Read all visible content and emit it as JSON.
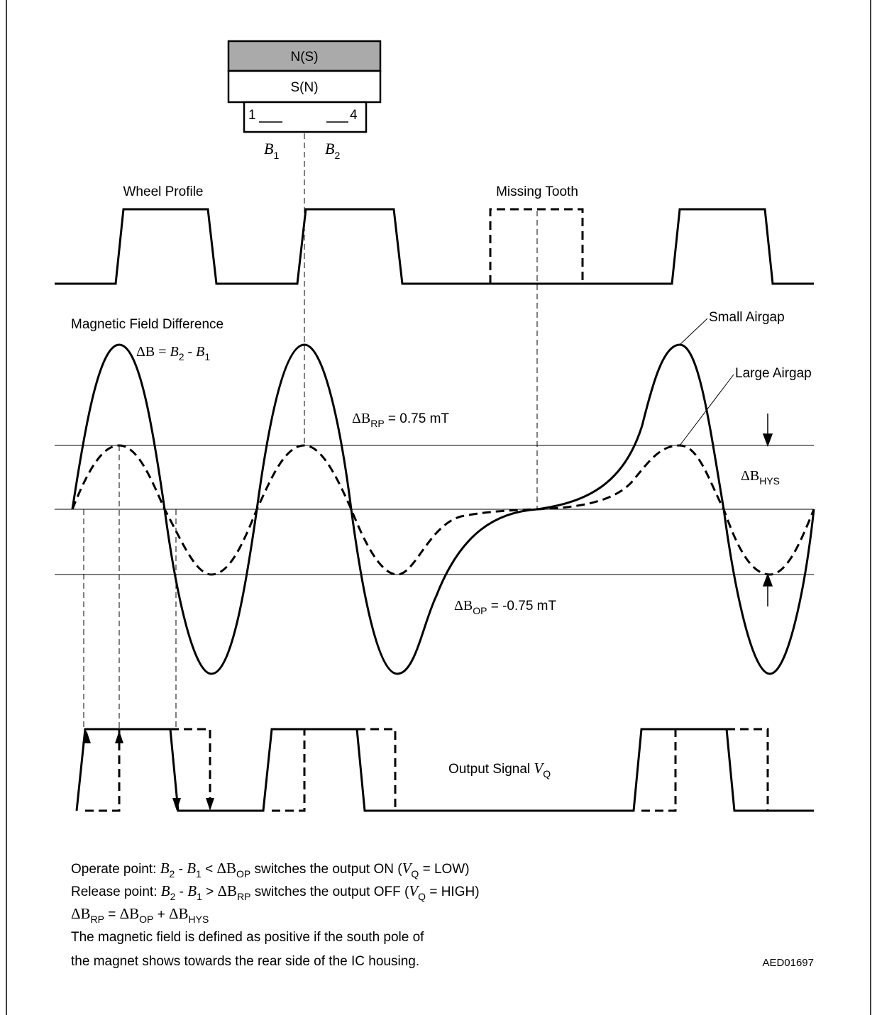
{
  "magnet": {
    "north_label": "N(S)",
    "south_label": "S(N)",
    "pin_left": "1",
    "pin_right": "4",
    "sensor_b1": "B",
    "sensor_b1_sub": "1",
    "sensor_b2": "B",
    "sensor_b2_sub": "2",
    "north_fill": "#aaaaaa"
  },
  "labels": {
    "wheel_profile": "Wheel Profile",
    "missing_tooth": "Missing Tooth",
    "field_difference": "Magnetic Field Difference",
    "small_airgap": "Small Airgap",
    "large_airgap": "Large Airgap",
    "output_signal": "Output Signal",
    "figure_id": "AED01697"
  },
  "formula_delta_b": {
    "delta": "ΔB",
    "equals": " = ",
    "b2": "B",
    "b2_sub": "2",
    "minus": " - ",
    "b1": "B",
    "b1_sub": "1"
  },
  "thresholds": {
    "rp_symbol": "ΔB",
    "rp_sub": "RP",
    "rp_value": " = 0.75 mT",
    "op_symbol": "ΔB",
    "op_sub": "OP",
    "op_value": " = -0.75 mT",
    "hys_symbol": "ΔB",
    "hys_sub": "HYS"
  },
  "output": {
    "vq": "V",
    "vq_sub": "Q"
  },
  "notes": {
    "operate_prefix": "Operate point: ",
    "operate_b2": "B",
    "operate_b2_sub": "2",
    "operate_minus": " - ",
    "operate_b1": "B",
    "operate_b1_sub": "1",
    "operate_cmp": " < ",
    "operate_delta": "ΔB",
    "operate_delta_sub": "OP",
    "operate_text": " switches the output ON (",
    "operate_v": "V",
    "operate_v_sub": "Q",
    "operate_end": " = LOW)",
    "release_prefix": "Release point: ",
    "release_b2": "B",
    "release_b2_sub": "2",
    "release_minus": " - ",
    "release_b1": "B",
    "release_b1_sub": "1",
    "release_cmp": " > ",
    "release_delta": "ΔB",
    "release_delta_sub": "RP",
    "release_text": " switches the output OFF (",
    "release_v": "V",
    "release_v_sub": "Q",
    "release_end": " = HIGH)",
    "sum_rp": "ΔB",
    "sum_rp_sub": "RP",
    "sum_eq": " = ",
    "sum_op": "ΔB",
    "sum_op_sub": "OP",
    "sum_plus": " + ",
    "sum_hys": "ΔB",
    "sum_hys_sub": "HYS",
    "def_line1": "The magnetic field is defined as positive if the south pole of",
    "def_line2": "the magnet shows towards the rear side of the IC housing."
  }
}
